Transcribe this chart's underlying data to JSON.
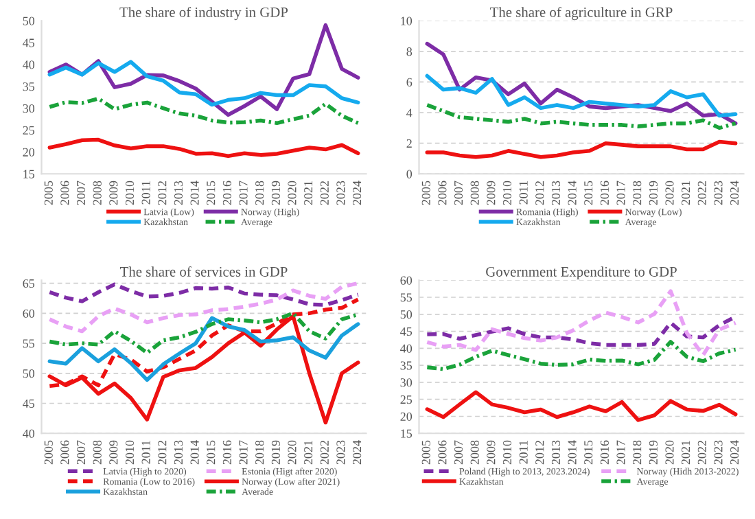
{
  "chart_data": [
    {
      "type": "line",
      "title": "The share of industry in GDP",
      "categories": [
        "2005",
        "2006",
        "2007",
        "2008",
        "2009",
        "2010",
        "2011",
        "2012",
        "2013",
        "2014",
        "2015",
        "2016",
        "2017",
        "2018",
        "2019",
        "2020",
        "2021",
        "2022",
        "2023",
        "2024"
      ],
      "ylim": [
        15,
        50
      ],
      "yticks": [
        15,
        20,
        25,
        30,
        35,
        40,
        45,
        50
      ],
      "grid": false,
      "legend": "bottom",
      "series": [
        {
          "name": "Latvia (Low)",
          "color": "#ee1111",
          "line_style": "solid",
          "values": [
            21,
            21.8,
            22.7,
            22.8,
            21.5,
            20.8,
            21.3,
            21.3,
            20.7,
            19.6,
            19.7,
            19.1,
            19.7,
            19.3,
            19.6,
            20.3,
            21,
            20.6,
            21.6,
            19.7
          ]
        },
        {
          "name": "Norway (High)",
          "color": "#7d2ca6",
          "line_style": "solid",
          "values": [
            38.3,
            40,
            37.7,
            40.8,
            34.8,
            35.6,
            37.6,
            37.5,
            36.2,
            34.5,
            31.5,
            28.5,
            30.5,
            32.7,
            29.8,
            36.8,
            37.8,
            49,
            39,
            37
          ]
        },
        {
          "name": "Kazakhstan",
          "color": "#15aaee",
          "line_style": "solid",
          "values": [
            37.7,
            39.3,
            37.7,
            40.3,
            38.3,
            40.6,
            37.3,
            36.3,
            33.6,
            33.2,
            30.8,
            31.9,
            32.3,
            33.5,
            33,
            33,
            35.3,
            35,
            32.3,
            31.3
          ]
        },
        {
          "name": "Average",
          "color": "#1aa33a",
          "line_style": "dashdot",
          "values": [
            30.3,
            31.4,
            31.2,
            32.2,
            29.8,
            30.8,
            31.3,
            30,
            28.8,
            28.3,
            27.2,
            26.7,
            26.8,
            27.2,
            26.6,
            27.5,
            28.3,
            31,
            28.3,
            26.6
          ]
        }
      ]
    },
    {
      "type": "line",
      "title": "The share of agriculture in GRP",
      "categories": [
        "2005",
        "2006",
        "2007",
        "2008",
        "2009",
        "2010",
        "2011",
        "2012",
        "2013",
        "2014",
        "2015",
        "2016",
        "2017",
        "2018",
        "2019",
        "2020",
        "2021",
        "2022",
        "2023",
        "2024"
      ],
      "ylim": [
        0,
        10
      ],
      "yticks": [
        0,
        2,
        4,
        6,
        8,
        10
      ],
      "grid": "y",
      "legend": "bottom",
      "series": [
        {
          "name": "Romania (High)",
          "color": "#7d2ca6",
          "line_style": "solid",
          "values": [
            8.5,
            7.8,
            5.5,
            6.3,
            6.1,
            5.2,
            5.9,
            4.6,
            5.5,
            5,
            4.4,
            4.3,
            4.4,
            4.5,
            4.3,
            4.1,
            4.6,
            3.8,
            3.9,
            3.3
          ]
        },
        {
          "name": "Norway (Low)",
          "color": "#ee1111",
          "line_style": "solid",
          "values": [
            1.4,
            1.4,
            1.2,
            1.1,
            1.2,
            1.5,
            1.3,
            1.1,
            1.2,
            1.4,
            1.5,
            2.0,
            1.9,
            1.8,
            1.8,
            1.8,
            1.6,
            1.6,
            2.1,
            2.0
          ]
        },
        {
          "name": "Kazakhstan",
          "color": "#15aaee",
          "line_style": "solid",
          "values": [
            6.4,
            5.5,
            5.6,
            5.3,
            6.2,
            4.5,
            5,
            4.3,
            4.5,
            4.3,
            4.7,
            4.6,
            4.5,
            4.4,
            4.5,
            5.4,
            5.0,
            5.2,
            3.8,
            3.9
          ]
        },
        {
          "name": "Average",
          "color": "#1aa33a",
          "line_style": "dashdot",
          "values": [
            4.5,
            4.1,
            3.7,
            3.6,
            3.5,
            3.4,
            3.6,
            3.3,
            3.4,
            3.3,
            3.2,
            3.2,
            3.2,
            3.1,
            3.2,
            3.3,
            3.3,
            3.5,
            3.0,
            3.3
          ]
        }
      ]
    },
    {
      "type": "line",
      "title": "The share of services in GDP",
      "categories": [
        "2005",
        "2006",
        "2007",
        "2008",
        "2009",
        "2010",
        "2011",
        "2012",
        "2013",
        "2014",
        "2015",
        "2016",
        "2017",
        "2018",
        "2019",
        "2020",
        "2021",
        "2022",
        "2023",
        "2024"
      ],
      "ylim": [
        40,
        65.5
      ],
      "yticks": [
        40,
        45,
        50,
        55,
        60,
        65
      ],
      "grid": "y",
      "legend": "bottom",
      "series": [
        {
          "name": "Latvia (High to 2020)",
          "color": "#7d2ca6",
          "line_style": "dashed",
          "values": [
            63.5,
            62.6,
            62,
            63.5,
            64.8,
            63.7,
            62.8,
            62.9,
            63.4,
            64.2,
            64.1,
            64.3,
            63.3,
            63.1,
            63,
            62.3,
            61.5,
            61.4,
            62.2,
            63.1
          ]
        },
        {
          "name": "Estonia (Higt after 2020)",
          "color": "#e8a0f5",
          "line_style": "dashed",
          "values": [
            59,
            57.8,
            57,
            59.5,
            60.8,
            59.8,
            58.5,
            59.2,
            59.7,
            59.8,
            60.5,
            60.7,
            61.1,
            61.6,
            62.3,
            63.8,
            62.9,
            62.4,
            64.4,
            65
          ]
        },
        {
          "name": "Romania (Low to 2016)",
          "color": "#ee1111",
          "line_style": "dashed",
          "values": [
            47.9,
            48.2,
            49.5,
            48,
            53.2,
            52.3,
            50.3,
            51,
            52.4,
            53.8,
            56.3,
            58,
            57,
            57,
            58.3,
            59.8,
            60,
            60.6,
            60.9,
            62.3
          ]
        },
        {
          "name": "Norway (Low after 2021)",
          "color": "#ee1111",
          "line_style": "solid",
          "values": [
            49.5,
            48,
            49.3,
            46.6,
            48.3,
            45.9,
            42.3,
            49.4,
            50.5,
            50.9,
            52.7,
            55,
            56.8,
            54.6,
            57.3,
            59.5,
            50,
            41.8,
            50,
            51.8
          ]
        },
        {
          "name": "Kazakhstan",
          "color": "#1aa0dd",
          "line_style": "solid",
          "values": [
            52,
            51.6,
            54.2,
            52,
            54,
            51.7,
            48.9,
            51.5,
            53.3,
            55,
            59.2,
            57.8,
            57.2,
            55.3,
            55.5,
            56,
            53.8,
            52.6,
            56.3,
            58.2
          ]
        },
        {
          "name": "Averade",
          "color": "#1aa33a",
          "line_style": "dashdot",
          "values": [
            55.3,
            54.8,
            55,
            54.8,
            57,
            55.4,
            53.4,
            55.5,
            56,
            56.9,
            58.2,
            59,
            58.8,
            58.5,
            59,
            60,
            57,
            55.8,
            59,
            59.8
          ]
        }
      ]
    },
    {
      "type": "line",
      "title": "Government Expenditure to GDP",
      "categories": [
        "2005",
        "2006",
        "2007",
        "2008",
        "2009",
        "2010",
        "2011",
        "2012",
        "2013",
        "2014",
        "2015",
        "2016",
        "2017",
        "2018",
        "2019",
        "2020",
        "2021",
        "2022",
        "2023",
        "2024"
      ],
      "ylim": [
        15,
        60
      ],
      "yticks": [
        15,
        20,
        25,
        30,
        35,
        40,
        45,
        50,
        55,
        60
      ],
      "grid": "y",
      "legend": "bottom",
      "series": [
        {
          "name": "Poland (High to 2013, 2023.2024)",
          "color": "#7d2ca6",
          "line_style": "dashed",
          "values": [
            44.1,
            44.2,
            42.8,
            43.9,
            44.9,
            45.9,
            44.2,
            43.2,
            43.2,
            42.6,
            41.5,
            41,
            41,
            41,
            41.3,
            47.5,
            43.5,
            43.2,
            46.8,
            49.3
          ]
        },
        {
          "name": "Norway (Hidh 2013-2022)",
          "color": "#e8a0f5",
          "line_style": "dashed",
          "values": [
            41.8,
            40.5,
            41,
            39.5,
            45.6,
            44.2,
            43,
            42.3,
            43.2,
            45.3,
            48.2,
            50.5,
            49.2,
            47.6,
            50.1,
            56.8,
            44.5,
            38,
            45.5,
            47.5
          ]
        },
        {
          "name": "Kazakhstan",
          "color": "#ee1111",
          "line_style": "solid",
          "values": [
            22.1,
            19.8,
            23.5,
            27.1,
            23.5,
            22.5,
            21.2,
            22,
            19.8,
            21.2,
            22.9,
            21.5,
            24.2,
            18.9,
            20.3,
            24.5,
            22,
            21.6,
            23.4,
            20.6
          ]
        },
        {
          "name": "Average",
          "color": "#1aa33a",
          "line_style": "dashdot",
          "values": [
            34.4,
            33.9,
            35.2,
            37.5,
            39.3,
            38,
            36.8,
            35.5,
            35.1,
            35.3,
            36.7,
            36.3,
            36.4,
            35.3,
            36.6,
            41.9,
            37.5,
            36.2,
            38.5,
            39.6
          ]
        }
      ]
    }
  ]
}
